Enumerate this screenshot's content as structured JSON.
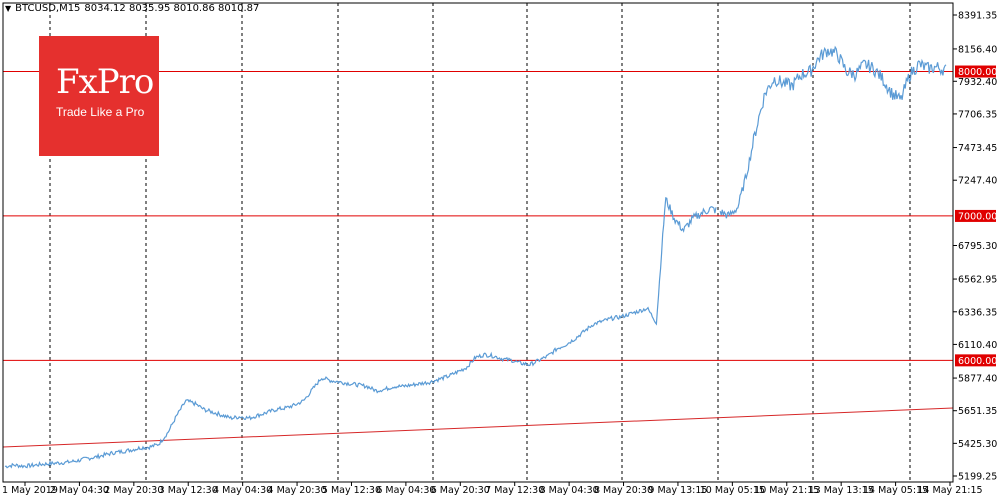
{
  "header": {
    "symbol": "BTCUSD,M15",
    "ohlc": "8034.12 8035.95 8010.86 8010.87"
  },
  "logo": {
    "brand": "FxPro",
    "tagline": "Trade Like a Pro"
  },
  "colors": {
    "price_line": "#5b9bd5",
    "level_line": "#e00000",
    "trend_line": "#d62728",
    "grid": "#000000",
    "axis_text": "#000000",
    "level_label_bg": "#e00000",
    "level_label_text": "#ffffff",
    "logo_bg": "#e5302e"
  },
  "chart_data": {
    "type": "line",
    "title": "",
    "xlabel": "",
    "ylabel": "",
    "y_ticks": [
      "8391.35",
      "8156.40",
      "7932.40",
      "7706.35",
      "7473.45",
      "7247.40",
      "6795.30",
      "6562.95",
      "6336.35",
      "6110.40",
      "5877.40",
      "5651.35",
      "5425.30",
      "5199.25"
    ],
    "x_ticks": [
      "1 May 2019",
      "2 May 04:30",
      "2 May 20:30",
      "3 May 12:30",
      "4 May 04:30",
      "4 May 20:30",
      "5 May 12:30",
      "6 May 04:30",
      "6 May 20:30",
      "7 May 12:30",
      "8 May 04:30",
      "8 May 20:30",
      "9 May 13:15",
      "10 May 05:15",
      "10 May 21:15",
      "13 May 13:15",
      "14 May 05:15",
      "14 May 21:15"
    ],
    "ylim": [
      5199.25,
      8391.35
    ],
    "grid": "vertical dashed",
    "horizontal_levels": [
      {
        "value": 8000,
        "label": "8000.00"
      },
      {
        "value": 7000,
        "label": "7000.00"
      },
      {
        "value": 6000,
        "label": "6000.00"
      }
    ],
    "trend_line": {
      "start": 5400,
      "end": 5670
    },
    "series": [
      {
        "values": [
          5265,
          5275,
          5268,
          5272,
          5280,
          5285,
          5290,
          5295,
          5305,
          5320,
          5330,
          5345,
          5360,
          5370,
          5380,
          5395,
          5400,
          5420,
          5500,
          5620,
          5720,
          5700,
          5660,
          5640,
          5620,
          5600,
          5610,
          5600,
          5620,
          5640,
          5660,
          5670,
          5690,
          5720,
          5800,
          5880,
          5860,
          5850,
          5840,
          5830,
          5820,
          5790,
          5800,
          5820,
          5820,
          5830,
          5840,
          5850,
          5870,
          5890,
          5920,
          5950,
          6020,
          6040,
          6030,
          6010,
          6000,
          5980,
          5970,
          6000,
          6030,
          6080,
          6110,
          6150,
          6200,
          6250,
          6270,
          6290,
          6300,
          6320,
          6340,
          6360,
          6260,
          7120,
          6980,
          6900,
          6980,
          7020,
          7050,
          7030,
          7000,
          7060,
          7300,
          7600,
          7850,
          7950,
          7920,
          7900,
          7980,
          8000,
          8100,
          8150,
          8120,
          8000,
          7980,
          8050,
          8020,
          7950,
          7850,
          7800,
          7980,
          8050,
          8020,
          8030,
          8010
        ]
      }
    ]
  }
}
